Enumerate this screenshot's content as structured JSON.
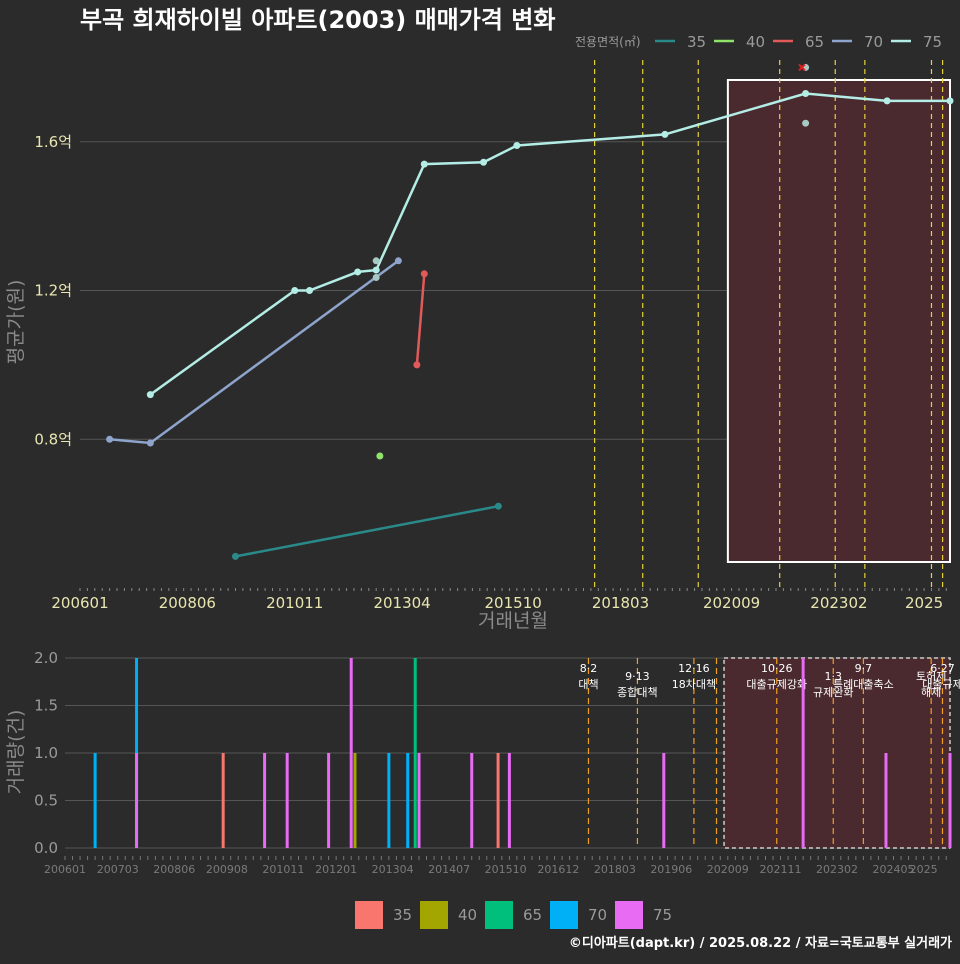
{
  "title": "부곡 희재하이빌 아파트(2003) 매매가격 변화",
  "footer": "©디아파트(dapt.kr) / 2025.08.22 / 자료=국토교통부 실거래가",
  "legend": {
    "title": "전용면적(㎡)",
    "items": [
      "35",
      "40",
      "65",
      "70",
      "75"
    ],
    "line_colors": {
      "35": "#2a8a8a",
      "40": "#8fe36a",
      "65": "#e05a5a",
      "70": "#8ea4cc",
      "75": "#b3ede6"
    },
    "bar_colors": {
      "35": "#f8766d",
      "40": "#a3a500",
      "65": "#00bf7d",
      "70": "#00b0f6",
      "75": "#e76bf3"
    }
  },
  "chart_data": [
    {
      "type": "line",
      "title": "부곡 희재하이빌 아파트(2003) 매매가격 변화",
      "xlabel": "거래년월",
      "ylabel": "평균가(원)",
      "x_ticks": [
        "200601",
        "200806",
        "201011",
        "201304",
        "201510",
        "201803",
        "202009",
        "202302",
        "2025"
      ],
      "y_ticks": [
        "0.8억",
        "1.2억",
        "1.6억"
      ],
      "y_tick_values": [
        0.8,
        1.2,
        1.6
      ],
      "ylim": [
        0.4,
        1.82
      ],
      "xlim": [
        "2006-01",
        "2025-08"
      ],
      "series": [
        {
          "name": "75",
          "values": [
            [
              "2007-08",
              0.92
            ],
            [
              "2010-11",
              1.2
            ],
            [
              "2011-03",
              1.2
            ],
            [
              "2012-04",
              1.25
            ],
            [
              "2012-09",
              1.255
            ],
            [
              "2013-10",
              1.54
            ],
            [
              "2015-02",
              1.545
            ],
            [
              "2015-11",
              1.59
            ],
            [
              "2019-03",
              1.62
            ],
            [
              "2022-05",
              1.73
            ],
            [
              "2024-03",
              1.71
            ],
            [
              "2025-08",
              1.71
            ]
          ]
        },
        {
          "name": "70",
          "values": [
            [
              "2006-09",
              0.8
            ],
            [
              "2007-08",
              0.79
            ],
            [
              "2013-03",
              1.28
            ]
          ]
        },
        {
          "name": "65",
          "values": [
            [
              "2013-08",
              1.0
            ],
            [
              "2013-10",
              1.245
            ]
          ]
        },
        {
          "name": "40",
          "values": [
            [
              "2012-10",
              0.755
            ]
          ]
        },
        {
          "name": "35",
          "values": [
            [
              "2009-07",
              0.485
            ],
            [
              "2015-06",
              0.62
            ]
          ]
        }
      ],
      "extra_points": [
        {
          "series": "75",
          "x": "2012-09",
          "y": 1.28
        },
        {
          "series": "75",
          "x": "2012-09",
          "y": 1.235
        },
        {
          "series": "75",
          "x": "2022-05",
          "y": 1.8
        },
        {
          "series": "75",
          "x": "2022-05",
          "y": 1.65
        }
      ],
      "cross_marker": {
        "x": "2022-04",
        "y": 1.8
      },
      "policy_lines": [
        "2017-08",
        "2018-09",
        "2019-12",
        "2021-10",
        "2023-01",
        "2023-09",
        "2025-03",
        "2025-06"
      ],
      "highlight": {
        "from": "2020-08",
        "to": "2025-08"
      }
    },
    {
      "type": "bar",
      "ylabel": "거래량(건)",
      "y_ticks": [
        "0.0",
        "0.5",
        "1.0",
        "1.5",
        "2.0"
      ],
      "y_tick_values": [
        0,
        0.5,
        1,
        1.5,
        2
      ],
      "ylim": [
        0,
        2
      ],
      "x_ticks": [
        "200601",
        "200703",
        "200806",
        "200908",
        "201011",
        "201201",
        "201304",
        "201407",
        "201510",
        "201612",
        "201803",
        "201906",
        "202009",
        "202111",
        "202302",
        "202405",
        "2025"
      ],
      "bars": [
        {
          "x": "2006-09",
          "series": "70",
          "value": 1
        },
        {
          "x": "2007-08",
          "series": "70",
          "value": 2
        },
        {
          "x": "2007-08",
          "series": "75",
          "value": 1
        },
        {
          "x": "2009-07",
          "series": "35",
          "value": 1
        },
        {
          "x": "2010-06",
          "series": "75",
          "value": 1
        },
        {
          "x": "2010-12",
          "series": "75",
          "value": 1
        },
        {
          "x": "2011-11",
          "series": "75",
          "value": 1
        },
        {
          "x": "2012-05",
          "series": "75",
          "value": 2
        },
        {
          "x": "2012-06",
          "series": "40",
          "value": 1
        },
        {
          "x": "2013-03",
          "series": "70",
          "value": 1
        },
        {
          "x": "2013-08",
          "series": "70",
          "value": 1
        },
        {
          "x": "2013-10",
          "series": "65",
          "value": 2
        },
        {
          "x": "2013-11",
          "series": "75",
          "value": 1
        },
        {
          "x": "2015-01",
          "series": "75",
          "value": 1
        },
        {
          "x": "2015-08",
          "series": "35",
          "value": 1
        },
        {
          "x": "2015-11",
          "series": "75",
          "value": 1
        },
        {
          "x": "2019-04",
          "series": "75",
          "value": 1
        },
        {
          "x": "2022-05",
          "series": "75",
          "value": 2
        },
        {
          "x": "2024-03",
          "series": "75",
          "value": 1
        },
        {
          "x": "2025-08",
          "series": "75",
          "value": 1
        }
      ],
      "policies": [
        {
          "x": "2017-08",
          "label": "8·2 대책"
        },
        {
          "x": "2018-09",
          "label": "9·13 종합대책"
        },
        {
          "x": "2019-12",
          "label": "12·16 18차대책"
        },
        {
          "x": "2020-06",
          "label": ""
        },
        {
          "x": "2021-10",
          "label": "10·26 대출규제강화"
        },
        {
          "x": "2023-01",
          "label": "1·3 규제완화"
        },
        {
          "x": "2023-09",
          "label": "9·7 특례대출축소"
        },
        {
          "x": "2025-03",
          "label": "토허제 해제"
        },
        {
          "x": "2025-06",
          "label": "6·27 대출규제"
        }
      ],
      "highlight": {
        "from": "2020-08",
        "to": "2025-08"
      }
    }
  ]
}
